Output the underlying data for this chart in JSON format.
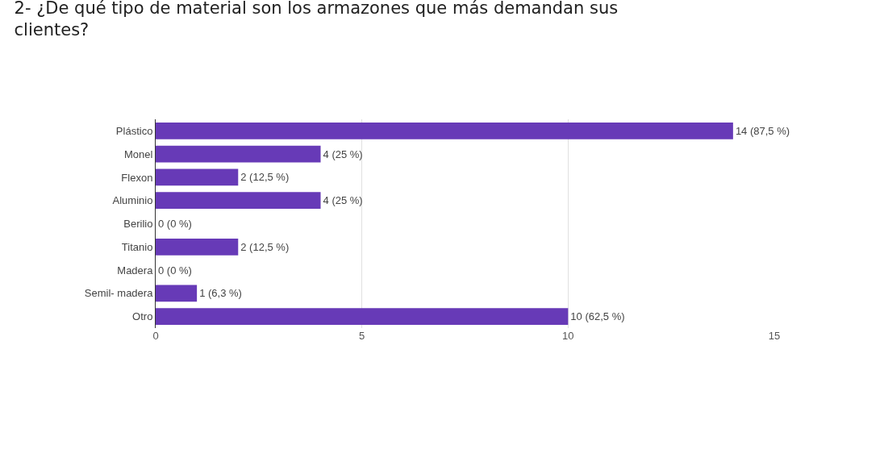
{
  "chart_data": {
    "type": "bar",
    "orientation": "horizontal",
    "title": "2- ¿De qué tipo de material son los armazones que más demandan sus clientes?",
    "categories": [
      "Plástico",
      "Monel",
      "Flexon",
      "Aluminio",
      "Berilio",
      "Titanio",
      "Madera",
      "Semil- madera",
      "Otro"
    ],
    "values": [
      14,
      4,
      2,
      4,
      0,
      2,
      0,
      1,
      10
    ],
    "value_labels": [
      "14 (87,5 %)",
      "4 (25 %)",
      "2 (12,5 %)",
      "4 (25 %)",
      "0 (0 %)",
      "2 (12,5 %)",
      "0 (0 %)",
      "1 (6,3 %)",
      "10 (62,5 %)"
    ],
    "color": "#673ab7",
    "xlim": [
      0,
      15
    ],
    "xticks": [
      0,
      5,
      10,
      15
    ],
    "grid": "x",
    "legend": false
  }
}
